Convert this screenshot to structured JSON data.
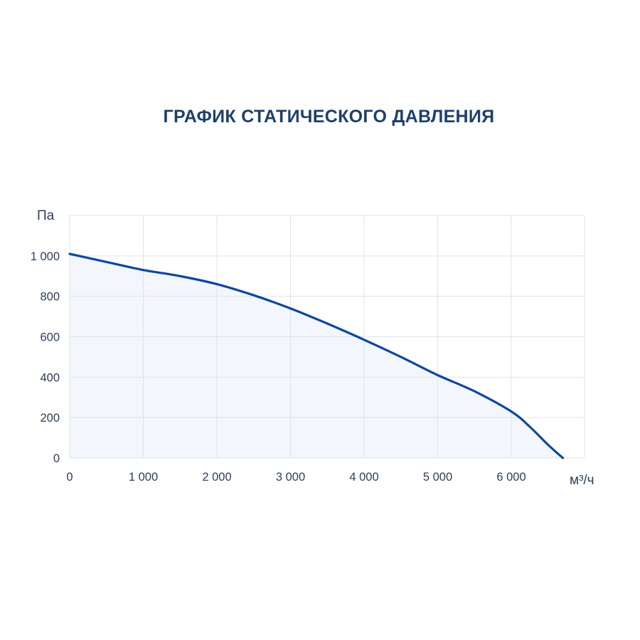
{
  "chart_data": {
    "type": "area",
    "title": "ГРАФИК СТАТИЧЕСКОГО ДАВЛЕНИЯ",
    "xlabel": "м³/ч",
    "ylabel": "Па",
    "xlim": [
      0,
      7000
    ],
    "ylim": [
      0,
      1200
    ],
    "x_ticks": [
      0,
      1000,
      2000,
      3000,
      4000,
      5000,
      6000
    ],
    "x_tick_labels": [
      "0",
      "1 000",
      "2 000",
      "3 000",
      "4 000",
      "5 000",
      "6 000"
    ],
    "y_ticks": [
      0,
      200,
      400,
      600,
      800,
      1000
    ],
    "y_tick_labels": [
      "0",
      "200",
      "400",
      "600",
      "800",
      "1 000"
    ],
    "grid": true,
    "series": [
      {
        "x": [
          0,
          500,
          1000,
          1500,
          2000,
          2500,
          3000,
          3500,
          4000,
          4500,
          5000,
          5500,
          6000,
          6250,
          6500,
          6700
        ],
        "y": [
          1010,
          970,
          930,
          900,
          860,
          805,
          740,
          665,
          585,
          500,
          410,
          330,
          230,
          155,
          65,
          0
        ]
      }
    ],
    "colors": {
      "line": "#0d47a1",
      "fill": "#f3f6fc",
      "grid": "#dfe3ea",
      "title": "#1f3f6b",
      "text": "#2c3e5a"
    }
  }
}
